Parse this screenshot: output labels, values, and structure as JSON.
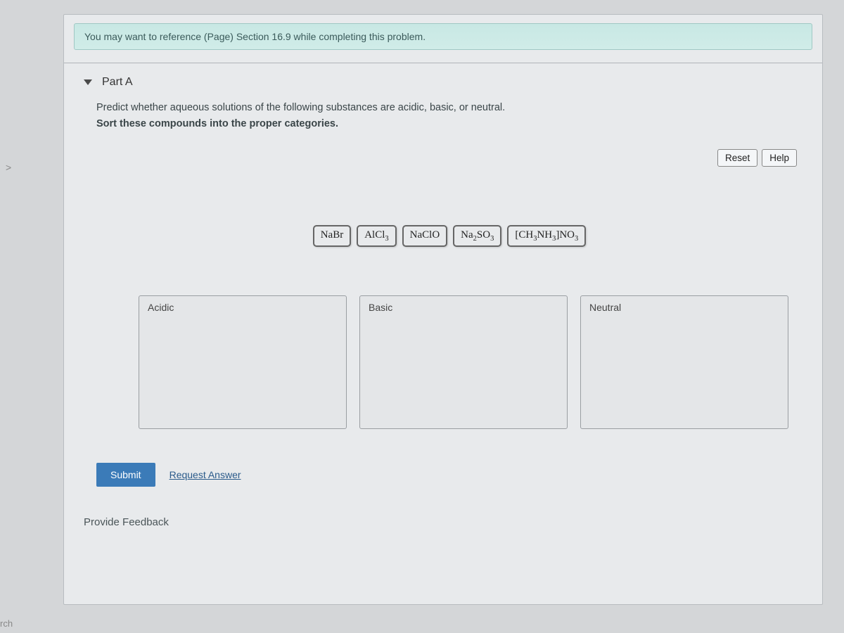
{
  "reference_text": "You may want to reference (Page) Section 16.9 while completing this problem.",
  "part": {
    "title": "Part A",
    "instruction_line1": "Predict whether aqueous solutions of the following substances are acidic, basic, or neutral.",
    "instruction_line2": "Sort these compounds into the proper categories."
  },
  "buttons": {
    "reset": "Reset",
    "help": "Help",
    "submit": "Submit",
    "request_answer": "Request Answer"
  },
  "compounds": [
    {
      "html": "NaBr"
    },
    {
      "html": "AlCl<sub>3</sub>"
    },
    {
      "html": "NaClO"
    },
    {
      "html": "Na<sub>2</sub>SO<sub>3</sub>"
    },
    {
      "html": "[CH<sub>3</sub>NH<sub>3</sub>]NO<sub>3</sub>"
    }
  ],
  "bins": [
    {
      "label": "Acidic"
    },
    {
      "label": "Basic"
    },
    {
      "label": "Neutral"
    }
  ],
  "feedback": "Provide Feedback",
  "left_hint": ">",
  "bottom_label": "rch"
}
